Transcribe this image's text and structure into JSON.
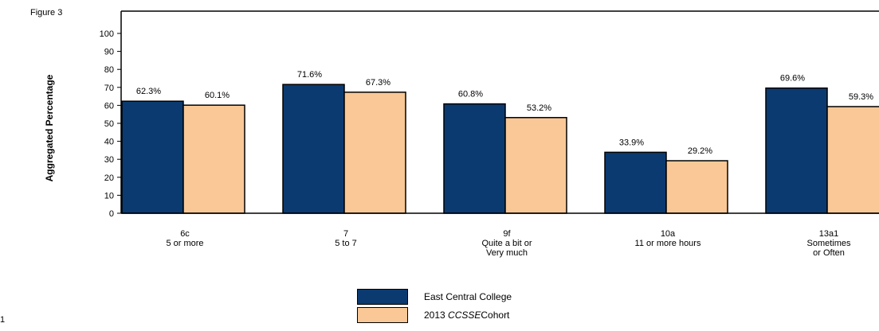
{
  "figure_label": "Figure 3",
  "page_number_fragment": "1",
  "colors": {
    "series1": "#0b3a70",
    "series2": "#f9c896"
  },
  "chart_data": {
    "type": "bar",
    "ylabel": "Aggregated Percentage",
    "ylim": [
      0,
      100
    ],
    "yticks": [
      0,
      10,
      20,
      30,
      40,
      50,
      60,
      70,
      80,
      90,
      100
    ],
    "grid": false,
    "legend_position": "bottom-center",
    "categories": [
      [
        "6c",
        "5 or more"
      ],
      [
        "7",
        "5 to 7"
      ],
      [
        "9f",
        "Quite a bit or",
        "Very much"
      ],
      [
        "10a",
        "11 or more hours"
      ],
      [
        "13a1",
        "Sometimes",
        "or Often"
      ]
    ],
    "series": [
      {
        "name": "East Central College",
        "values": [
          62.3,
          71.6,
          60.8,
          33.9,
          69.6
        ],
        "labels": [
          "62.3%",
          "71.6%",
          "60.8%",
          "33.9%",
          "69.6%"
        ]
      },
      {
        "name": "2013 CCSSE Cohort",
        "values": [
          60.1,
          67.3,
          53.2,
          29.2,
          59.3
        ],
        "labels": [
          "60.1%",
          "67.3%",
          "53.2%",
          "29.2%",
          "59.3%"
        ]
      }
    ]
  },
  "legend": {
    "series1_label": "East Central College",
    "series2_prefix": "2013 ",
    "series2_italic": "CCSSE",
    "series2_suffix": "Cohort"
  }
}
